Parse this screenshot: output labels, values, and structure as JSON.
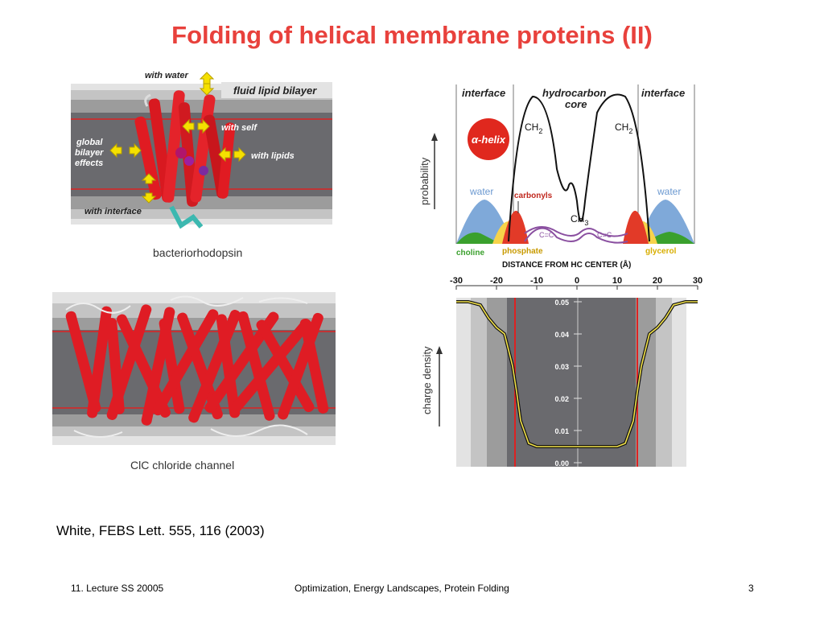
{
  "slide": {
    "title": "Folding of helical membrane proteins (II)",
    "citation": "White, FEBS Lett. 555, 116 (2003)",
    "footer": {
      "left": "11. Lecture SS 20005",
      "center": "Optimization, Energy Landscapes, Protein Folding",
      "right": "3"
    }
  },
  "bacteriorhodopsin_panel": {
    "labels": {
      "with_water": "with water",
      "fluid_lipid_bilayer": "fluid lipid bilayer",
      "with_self": "with self",
      "global": "global",
      "bilayer": "bilayer",
      "effects": "effects",
      "with_lipids": "with lipids",
      "with_interface": "with interface"
    },
    "caption": "bacteriorhodopsin"
  },
  "clc_panel": {
    "caption": "ClC chloride channel"
  },
  "probability_panel": {
    "region_labels": {
      "interface_left": "interface",
      "hydrocarbon": "hydrocarbon",
      "core": "core",
      "interface_right": "interface"
    },
    "ylabel": "probability",
    "alpha_helix": "α-helix",
    "group_labels": {
      "ch2": "CH",
      "ch2_sub": "2",
      "ch3": "CH",
      "ch3_sub": "3",
      "water": "water",
      "carbonyls": "carbonyls",
      "cc": "C=C",
      "choline": "choline",
      "phosphate": "phosphate",
      "glycerol": "glycerol"
    },
    "xlabel": "DISTANCE FROM HC CENTER (Å)",
    "colors": {
      "water": "#7fa9d9",
      "carbonyl": "#e23a28",
      "choline": "#3aa02d",
      "phosphate": "#f0c419",
      "glycerol": "#f7d34a",
      "cc": "#8a4fa0"
    }
  },
  "chart_data": {
    "type": "line",
    "xlabel": "",
    "ylabel": "charge density",
    "x_ticks": [
      "-30",
      "-20",
      "-10",
      "0",
      "10",
      "20",
      "30"
    ],
    "y_ticks": [
      "0.05",
      "0.04",
      "0.03",
      "0.02",
      "0.01",
      "0.00"
    ],
    "xlim": [
      -30,
      30
    ],
    "ylim": [
      0,
      0.05
    ],
    "series": [
      {
        "x": [
          -30,
          -27,
          -24,
          -22,
          -20,
          -18,
          -16,
          -15,
          -14,
          -12,
          -10,
          -5,
          0,
          5,
          10,
          12,
          14,
          15,
          16,
          18,
          20,
          22,
          24,
          27,
          30
        ],
        "y": [
          0.05,
          0.05,
          0.049,
          0.045,
          0.042,
          0.04,
          0.03,
          0.022,
          0.013,
          0.006,
          0.005,
          0.005,
          0.005,
          0.005,
          0.005,
          0.006,
          0.013,
          0.022,
          0.03,
          0.04,
          0.042,
          0.045,
          0.049,
          0.05,
          0.05
        ]
      }
    ]
  }
}
